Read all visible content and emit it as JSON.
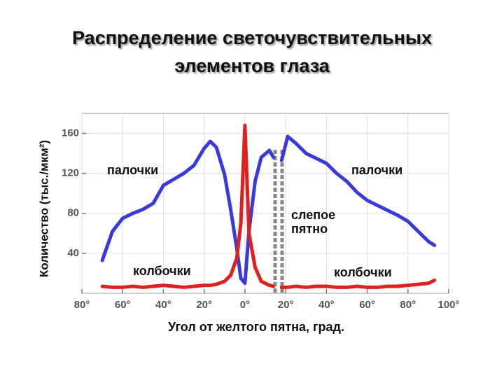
{
  "chart_data": {
    "type": "line",
    "title": "Распределение светочувствительных элементов глаза",
    "xlabel": "Угол от желтого пятна, град.",
    "ylabel": "Количество (тыс./мкм²)",
    "x": [
      -70,
      -65,
      -60,
      -55,
      -50,
      -45,
      -40,
      -35,
      -30,
      -25,
      -20,
      -17,
      -14,
      -10,
      -7,
      -4,
      -2,
      0,
      2,
      5,
      8,
      12,
      14,
      16,
      18,
      21,
      25,
      30,
      35,
      40,
      45,
      50,
      55,
      60,
      65,
      70,
      75,
      80,
      85,
      90,
      93
    ],
    "series": [
      {
        "name": "палочки",
        "color": "#3a3ad8",
        "values": [
          33,
          62,
          75,
          80,
          84,
          90,
          108,
          114,
          120,
          128,
          145,
          152,
          146,
          119,
          84,
          45,
          15,
          10,
          62,
          112,
          136,
          143,
          136,
          null,
          133,
          157,
          150,
          140,
          135,
          130,
          120,
          112,
          101,
          93,
          88,
          83,
          78,
          72,
          62,
          52,
          48
        ]
      },
      {
        "name": "колбочки",
        "color": "#e0201e",
        "values": [
          7,
          6,
          6,
          7,
          6,
          7,
          8,
          7,
          6,
          7,
          8,
          8,
          9,
          12,
          18,
          35,
          70,
          168,
          60,
          26,
          12,
          8,
          7,
          null,
          6,
          6,
          7,
          6,
          7,
          7,
          6,
          6,
          7,
          6,
          6,
          7,
          7,
          8,
          9,
          10,
          13
        ]
      }
    ],
    "annotations": [
      "палочки",
      "палочки",
      "колбочки",
      "колбочки",
      "слепое",
      "пятно"
    ],
    "xlim": [
      -80,
      100
    ],
    "ylim": [
      0,
      180
    ],
    "xticks": [
      {
        "value": -80,
        "label": "80°"
      },
      {
        "value": -60,
        "label": "60°"
      },
      {
        "value": -40,
        "label": "40°"
      },
      {
        "value": -20,
        "label": "20°"
      },
      {
        "value": 0,
        "label": "0°"
      },
      {
        "value": 20,
        "label": "20°"
      },
      {
        "value": 40,
        "label": "40°"
      },
      {
        "value": 60,
        "label": "60°"
      },
      {
        "value": 80,
        "label": "80°"
      },
      {
        "value": 100,
        "label": "100°"
      }
    ],
    "yticks": [
      40,
      80,
      120,
      160
    ],
    "grid": true
  }
}
